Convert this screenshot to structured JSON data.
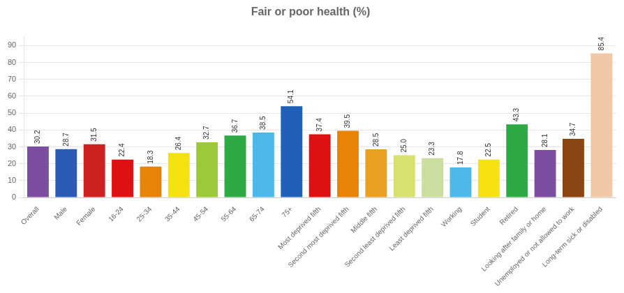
{
  "chart_data": {
    "type": "bar",
    "title": "Fair or poor health (%)",
    "categories": [
      "Overall",
      "Male",
      "Female",
      "16-24",
      "25-34",
      "35-44",
      "45-54",
      "55-64",
      "65-74",
      "75+",
      "Most deprived fifth",
      "Second most deprived fifth",
      "Middle fifth",
      "Second least deprived fifth",
      "Least deprived fifth",
      "Working",
      "Student",
      "Retired",
      "Looking after family or home",
      "Unemployed or not allowed to work",
      "Long-term sick or disabled"
    ],
    "values": [
      30.2,
      28.7,
      31.5,
      22.4,
      18.3,
      26.4,
      32.7,
      36.7,
      38.5,
      54.1,
      37.4,
      39.5,
      28.5,
      25.0,
      23.3,
      17.8,
      22.5,
      43.3,
      28.1,
      34.7,
      85.4
    ],
    "value_labels": [
      "30.2",
      "28.7",
      "31.5",
      "22.4",
      "18.3",
      "26.4",
      "32.7",
      "36.7",
      "38.5",
      "54.1",
      "37.4",
      "39.5",
      "28.5",
      "25.0",
      "23.3",
      "17.8",
      "22.5",
      "43.3",
      "28.1",
      "34.7",
      "85.4"
    ],
    "colors": [
      "#7B4EA0",
      "#2B5BB5",
      "#CC2222",
      "#DD1111",
      "#E8830A",
      "#F5E010",
      "#9DC83A",
      "#2EAA44",
      "#4BB8E8",
      "#2060B8",
      "#DD1111",
      "#E8830A",
      "#E8A020",
      "#D8E070",
      "#CCDDA0",
      "#4BB8E8",
      "#F5E010",
      "#2EAA44",
      "#7B4EA0",
      "#8B4513",
      "#F0C8A8"
    ],
    "ylim": [
      0,
      95
    ],
    "yticks": [
      0,
      10,
      20,
      30,
      40,
      50,
      60,
      70,
      80,
      90
    ],
    "grid": true,
    "data_labels": true
  }
}
